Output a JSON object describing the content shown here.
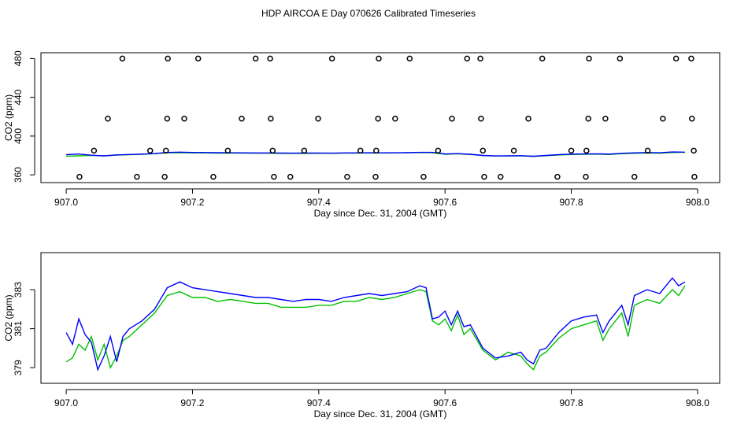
{
  "title": "HDP AIRCOA E  Day 070626  Calibrated Timeseries",
  "chart_data": [
    {
      "type": "scatter",
      "xlabel": "Day since Dec. 31, 2004 (GMT)",
      "ylabel": "CO2 (ppm)",
      "xlim": [
        906.96,
        908.035
      ],
      "ylim": [
        352,
        486
      ],
      "xticks": [
        {
          "value": 907.0,
          "label": "907.0"
        },
        907.2,
        907.4,
        907.6,
        907.8,
        {
          "value": 908.0,
          "label": "908.0"
        }
      ],
      "yticks": [
        360,
        400,
        440,
        480
      ],
      "points": {
        "color": "#000000",
        "x": [
          907.089,
          907.161,
          907.209,
          907.3,
          907.323,
          907.421,
          907.495,
          907.544,
          907.635,
          907.656,
          907.754,
          907.828,
          907.877,
          907.966,
          907.99,
          907.066,
          907.16,
          907.187,
          907.278,
          907.324,
          907.399,
          907.494,
          907.521,
          907.611,
          907.657,
          907.732,
          907.827,
          907.854,
          907.945,
          907.991,
          907.044,
          907.133,
          907.158,
          907.256,
          907.327,
          907.377,
          907.466,
          907.491,
          907.589,
          907.66,
          907.709,
          907.8,
          907.824,
          907.921,
          907.994,
          907.021,
          907.112,
          907.156,
          907.233,
          907.329,
          907.355,
          907.445,
          907.49,
          907.566,
          907.662,
          907.688,
          907.778,
          907.823,
          907.9,
          907.995
        ],
        "values": [
          480,
          480,
          480,
          480,
          480,
          480,
          480,
          480,
          480,
          480,
          480,
          480,
          480,
          480,
          480,
          418,
          418,
          418,
          418,
          418,
          418,
          418,
          418,
          418,
          418,
          418,
          418,
          418,
          418,
          418,
          385,
          385,
          385,
          385,
          385,
          385,
          385,
          385,
          385,
          385,
          385,
          385,
          385,
          385,
          385,
          358,
          358,
          358,
          358,
          358,
          358,
          358,
          358,
          358,
          358,
          358,
          358,
          358,
          358,
          358
        ]
      },
      "x": [
        907.0,
        907.02,
        907.04,
        907.06,
        907.08,
        907.1,
        907.12,
        907.14,
        907.16,
        907.18,
        907.2,
        907.22,
        907.24,
        907.26,
        907.28,
        907.3,
        907.32,
        907.34,
        907.36,
        907.38,
        907.4,
        907.42,
        907.44,
        907.46,
        907.48,
        907.5,
        907.52,
        907.54,
        907.56,
        907.58,
        907.6,
        907.62,
        907.64,
        907.66,
        907.68,
        907.7,
        907.72,
        907.74,
        907.76,
        907.78,
        907.8,
        907.82,
        907.84,
        907.86,
        907.88,
        907.9,
        907.92,
        907.94,
        907.96,
        907.98
      ],
      "series": [
        {
          "color": "#00c000",
          "values": [
            379.3,
            379.6,
            380.1,
            379.5,
            380.4,
            380.8,
            381.2,
            381.8,
            382.7,
            382.9,
            382.6,
            382.6,
            382.4,
            382.5,
            382.4,
            382.3,
            382.3,
            382.1,
            382.1,
            382.1,
            382.2,
            382.2,
            382.4,
            382.4,
            382.6,
            382.5,
            382.6,
            382.8,
            383.0,
            382.9,
            381.2,
            381.7,
            381.0,
            379.9,
            379.4,
            379.5,
            379.6,
            379.0,
            379.8,
            380.5,
            381.0,
            381.2,
            381.4,
            381.0,
            381.8,
            382.2,
            382.5,
            382.3,
            383.0,
            383.2
          ]
        },
        {
          "color": "#0000ff",
          "values": [
            380.8,
            381.5,
            380.3,
            379.6,
            380.6,
            381.0,
            381.4,
            382.0,
            383.1,
            383.4,
            383.1,
            383.0,
            382.9,
            382.8,
            382.7,
            382.6,
            382.6,
            382.5,
            382.4,
            382.5,
            382.5,
            382.4,
            382.6,
            382.7,
            382.8,
            382.7,
            382.8,
            382.9,
            383.2,
            383.2,
            381.6,
            381.9,
            381.2,
            380.0,
            379.5,
            379.6,
            379.8,
            379.2,
            380.0,
            380.8,
            381.4,
            381.6,
            381.7,
            381.4,
            382.2,
            382.7,
            383.0,
            382.8,
            383.6,
            383.4
          ]
        }
      ]
    },
    {
      "type": "line",
      "xlabel": "Day since Dec. 31, 2004 (GMT)",
      "ylabel": "CO2 (ppm)",
      "xlim": [
        906.96,
        908.035
      ],
      "ylim": [
        378.2,
        384.9
      ],
      "xticks": [
        {
          "value": 907.0,
          "label": "907.0"
        },
        907.2,
        907.4,
        907.6,
        907.8,
        {
          "value": 908.0,
          "label": "908.0"
        }
      ],
      "yticks": [
        379,
        381,
        383
      ],
      "x": [
        907.0,
        907.01,
        907.02,
        907.03,
        907.04,
        907.05,
        907.06,
        907.07,
        907.08,
        907.09,
        907.1,
        907.12,
        907.14,
        907.16,
        907.18,
        907.2,
        907.22,
        907.24,
        907.26,
        907.28,
        907.3,
        907.32,
        907.34,
        907.36,
        907.38,
        907.4,
        907.42,
        907.44,
        907.46,
        907.48,
        907.5,
        907.52,
        907.54,
        907.56,
        907.57,
        907.58,
        907.59,
        907.6,
        907.61,
        907.62,
        907.63,
        907.64,
        907.66,
        907.68,
        907.7,
        907.72,
        907.73,
        907.74,
        907.75,
        907.76,
        907.78,
        907.8,
        907.82,
        907.84,
        907.85,
        907.86,
        907.88,
        907.89,
        907.9,
        907.92,
        907.94,
        907.96,
        907.97,
        907.98
      ],
      "series": [
        {
          "color": "#00c000",
          "values": [
            379.3,
            379.5,
            380.2,
            379.9,
            380.6,
            379.4,
            380.2,
            379.0,
            379.6,
            380.4,
            380.6,
            381.2,
            381.8,
            382.7,
            382.9,
            382.6,
            382.6,
            382.4,
            382.5,
            382.4,
            382.3,
            382.3,
            382.1,
            382.1,
            382.1,
            382.2,
            382.2,
            382.4,
            382.4,
            382.6,
            382.5,
            382.6,
            382.8,
            383.0,
            382.9,
            381.4,
            381.2,
            381.5,
            380.9,
            381.7,
            380.7,
            381.0,
            379.9,
            379.4,
            379.8,
            379.6,
            379.2,
            378.9,
            379.6,
            379.8,
            380.5,
            381.0,
            381.2,
            381.4,
            380.4,
            381.0,
            381.8,
            380.6,
            382.2,
            382.5,
            382.3,
            383.0,
            382.7,
            383.2
          ]
        },
        {
          "color": "#0000ff",
          "values": [
            380.8,
            380.2,
            381.5,
            380.7,
            380.3,
            378.9,
            379.6,
            380.6,
            379.3,
            380.6,
            381.0,
            381.4,
            382.0,
            383.1,
            383.4,
            383.1,
            383.0,
            382.9,
            382.8,
            382.7,
            382.6,
            382.6,
            382.5,
            382.4,
            382.5,
            382.5,
            382.4,
            382.6,
            382.7,
            382.8,
            382.7,
            382.8,
            382.9,
            383.2,
            383.1,
            381.5,
            381.6,
            381.9,
            381.2,
            381.9,
            381.1,
            381.2,
            380.0,
            379.5,
            379.6,
            379.8,
            379.4,
            379.2,
            379.9,
            380.0,
            380.8,
            381.4,
            381.6,
            381.7,
            380.8,
            381.4,
            382.2,
            381.2,
            382.7,
            383.0,
            382.8,
            383.6,
            383.2,
            383.4
          ]
        }
      ]
    }
  ]
}
